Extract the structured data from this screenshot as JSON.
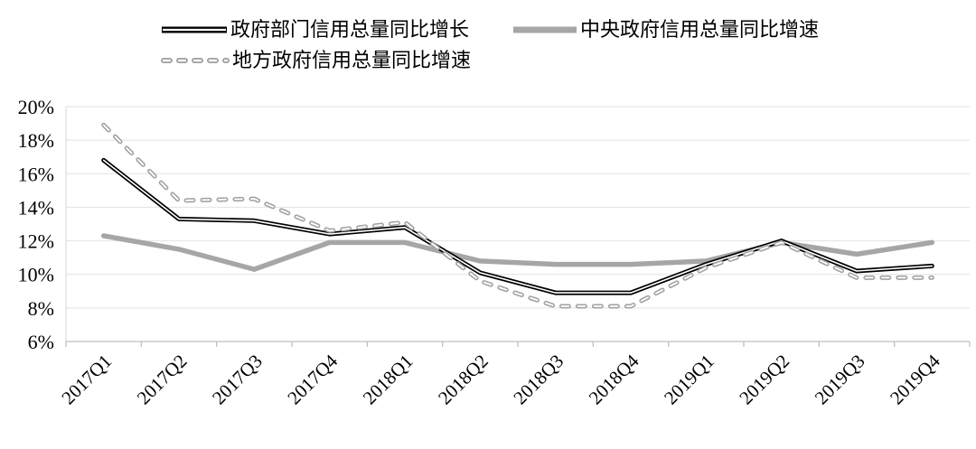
{
  "chart_data": {
    "type": "line",
    "title": "",
    "categories": [
      "2017Q1",
      "2017Q2",
      "2017Q3",
      "2017Q4",
      "2018Q1",
      "2018Q2",
      "2018Q3",
      "2018Q4",
      "2019Q1",
      "2019Q2",
      "2019Q3",
      "2019Q4"
    ],
    "series": [
      {
        "name": "政府部门信用总量同比增长",
        "style": "black-double",
        "color": "#000000",
        "values": [
          16.8,
          13.3,
          13.2,
          12.4,
          12.8,
          10.1,
          8.9,
          8.9,
          10.6,
          12.0,
          10.2,
          10.5
        ]
      },
      {
        "name": "中央政府信用总量同比增速",
        "style": "gray-solid",
        "color": "#a6a6a6",
        "values": [
          12.3,
          11.5,
          10.3,
          11.9,
          11.9,
          10.8,
          10.6,
          10.6,
          10.8,
          11.9,
          11.2,
          11.9
        ]
      },
      {
        "name": "地方政府信用总量同比增速",
        "style": "gray-dashed-hollow",
        "color": "#a3a3a3",
        "values": [
          18.9,
          14.4,
          14.5,
          12.6,
          13.1,
          9.6,
          8.1,
          8.1,
          10.4,
          11.9,
          9.8,
          9.8
        ]
      }
    ],
    "y_axis": {
      "min": 6,
      "max": 20,
      "step": 2,
      "unit": "%",
      "tick_labels": [
        "20%",
        "18%",
        "16%",
        "14%",
        "12%",
        "10%",
        "8%",
        "6%"
      ]
    },
    "x_axis": {
      "label_rotation_deg": -45
    },
    "legend_position": "top",
    "grid": "horizontal",
    "colors": {
      "gridline": "#e2e2e2",
      "axis": "#bfbfbf",
      "plot_left_line": "#d9d9d9",
      "background": "#ffffff"
    }
  }
}
